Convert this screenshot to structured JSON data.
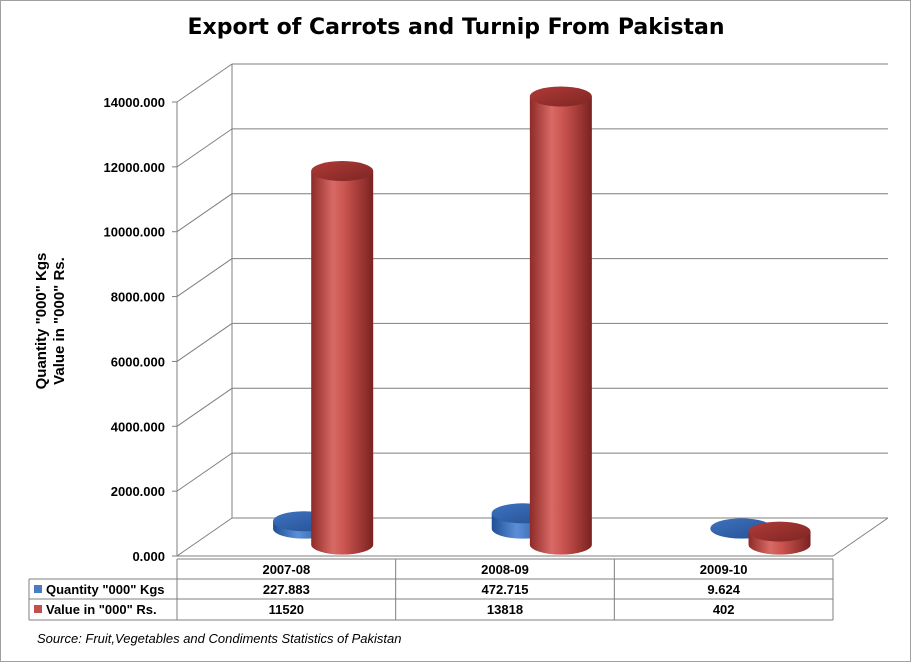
{
  "chart_data": {
    "type": "bar",
    "style": "3d-cylinder",
    "title": "Export of Carrots and Turnip From Pakistan",
    "ylabel_lines": [
      "Quantity \"000\" Kgs",
      "Value in \"000\" Rs."
    ],
    "xlabel": "",
    "categories": [
      "2007-08",
      "2008-09",
      "2009-10"
    ],
    "ylim": [
      0,
      14000
    ],
    "yticks": [
      "0.000",
      "2000.000",
      "4000.000",
      "6000.000",
      "8000.000",
      "10000.000",
      "12000.000",
      "14000.000"
    ],
    "grid": true,
    "legend": "data-table-below",
    "series": [
      {
        "name": "Quantity \"000\" Kgs",
        "values": [
          227.883,
          472.715,
          9.624
        ],
        "labels": [
          "227.883",
          "472.715",
          "9.624"
        ],
        "color": "#4a7cc4"
      },
      {
        "name": "Value in \"000\" Rs.",
        "values": [
          11520,
          13818,
          402
        ],
        "labels": [
          "11520",
          "13818",
          "402"
        ],
        "color": "#c0504d"
      }
    ],
    "source": "Source: Fruit,Vegetables and Condiments Statistics of Pakistan"
  }
}
